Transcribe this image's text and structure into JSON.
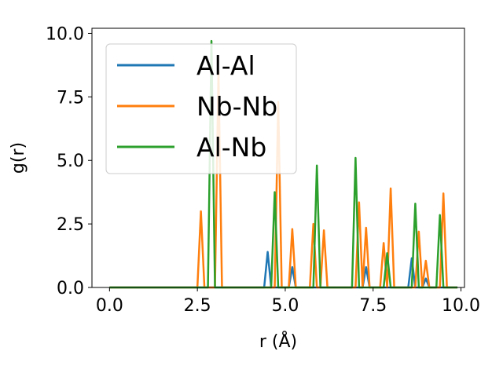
{
  "chart_data": {
    "type": "line",
    "title": "",
    "xlabel": "r (Å)",
    "ylabel": "g(r)",
    "xlim": [
      -0.5,
      10.1
    ],
    "ylim": [
      0.0,
      10.2
    ],
    "xticks": [
      "0.0",
      "2.5",
      "5.0",
      "7.5",
      "10.0"
    ],
    "yticks": [
      "0.0",
      "2.5",
      "5.0",
      "7.5",
      "10.0"
    ],
    "grid": false,
    "legend_position": "upper-left",
    "x_range": [
      0.0,
      9.9
    ],
    "series": [
      {
        "name": "Al-Al",
        "color": "#1f77b4",
        "peaks": [
          [
            4.5,
            1.4
          ],
          [
            5.2,
            0.8
          ],
          [
            7.3,
            0.8
          ],
          [
            8.6,
            1.15
          ],
          [
            9.0,
            0.35
          ]
        ]
      },
      {
        "name": "Nb-Nb",
        "color": "#ff7f0e",
        "peaks": [
          [
            2.6,
            3.0
          ],
          [
            3.1,
            8.5
          ],
          [
            4.8,
            7.3
          ],
          [
            5.2,
            2.3
          ],
          [
            5.8,
            2.5
          ],
          [
            6.1,
            2.25
          ],
          [
            7.1,
            3.35
          ],
          [
            7.3,
            2.35
          ],
          [
            7.8,
            1.75
          ],
          [
            8.0,
            3.9
          ],
          [
            8.8,
            2.2
          ],
          [
            9.0,
            1.05
          ],
          [
            9.5,
            3.7
          ]
        ]
      },
      {
        "name": "Al-Nb",
        "color": "#2ca02c",
        "peaks": [
          [
            2.9,
            9.7
          ],
          [
            4.7,
            3.75
          ],
          [
            5.9,
            4.8
          ],
          [
            7.0,
            5.1
          ],
          [
            7.9,
            1.35
          ],
          [
            8.7,
            3.3
          ],
          [
            9.4,
            2.85
          ]
        ]
      }
    ]
  }
}
